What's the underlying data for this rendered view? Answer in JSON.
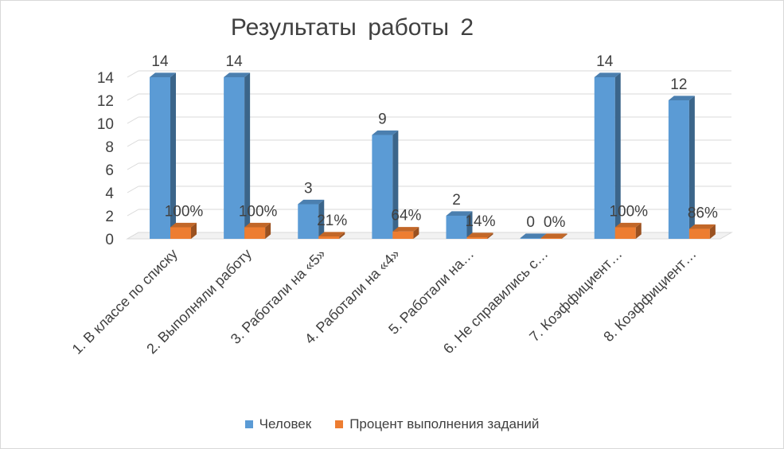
{
  "chart_data": {
    "type": "bar",
    "title": "Результаты  работы  2",
    "categories": [
      "1.    В классе по списку",
      "2.    Выполняли  работу",
      "3.    Работали на «5»",
      "4.    Работали на «4»",
      "5.    Работали на…",
      "6.    Не справились с…",
      "7.    Коэффициент…",
      "8.    Коэффициент…"
    ],
    "series": [
      {
        "name": "Человек",
        "values": [
          14,
          14,
          3,
          9,
          2,
          0,
          14,
          12
        ],
        "labels": [
          "14",
          "14",
          "3",
          "9",
          "2",
          "0",
          "14",
          "12"
        ],
        "color": "#5b9bd5"
      },
      {
        "name": "Процент выполнения  заданий",
        "values": [
          1.0,
          1.0,
          0.21,
          0.64,
          0.14,
          0,
          1.0,
          0.86
        ],
        "labels": [
          "100%",
          "100%",
          "21%",
          "64%",
          "14%",
          "0%",
          "100%",
          "86%"
        ],
        "color": "#ed7d31"
      }
    ],
    "y_ticks": [
      "0",
      "2",
      "4",
      "6",
      "8",
      "10",
      "12",
      "14"
    ],
    "ylim": [
      0,
      14
    ],
    "grid": true,
    "legend_position": "bottom",
    "style": "3d-column"
  }
}
